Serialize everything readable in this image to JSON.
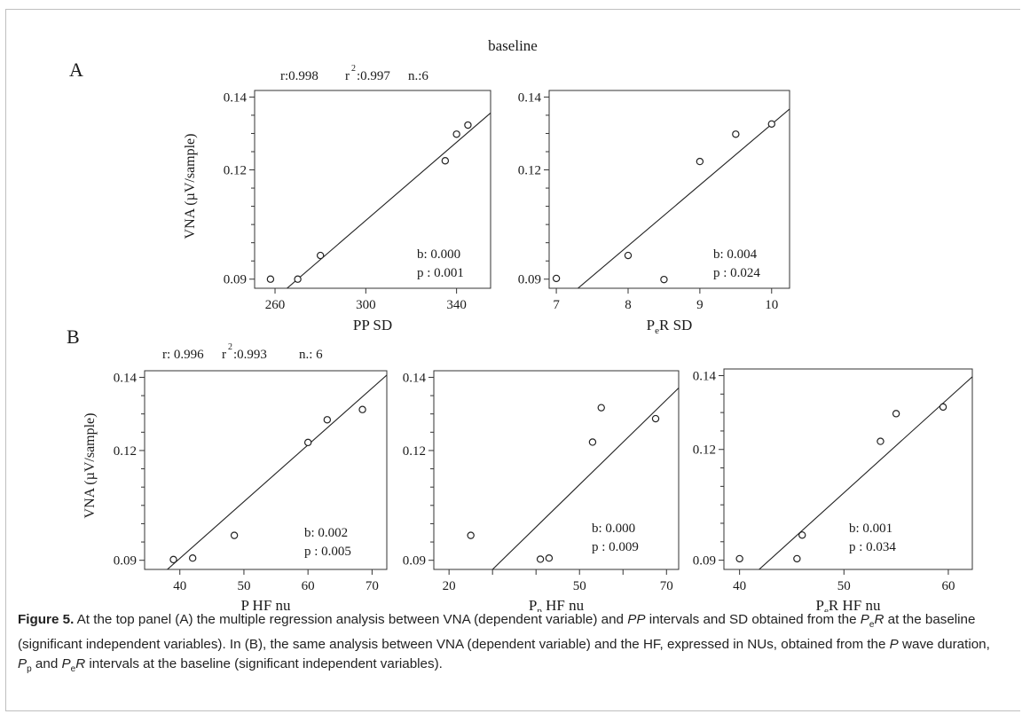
{
  "figure": {
    "overall_title": "baseline",
    "panel_a_label": "A",
    "panel_b_label": "B",
    "panel_a_stats": {
      "r": "r:0.998",
      "r2_label": "r",
      "r2_exp": "2",
      "r2_val": ":0.997",
      "n": "n.:6"
    },
    "panel_b_stats": {
      "r": "r: 0.996",
      "r2_label": "r",
      "r2_exp": "2",
      "r2_val": ":0.993",
      "n": "n.: 6"
    },
    "ylabel": "VNA (µV/sample)"
  },
  "chart_data": [
    {
      "type": "scatter",
      "panel": "A",
      "xlabel": "PP SD",
      "xlim": [
        251,
        355
      ],
      "ylim": [
        0.0875,
        0.1418
      ],
      "xticks": [
        260,
        300,
        340
      ],
      "yticks": [
        0.09,
        0.12,
        0.14
      ],
      "x": [
        258,
        270,
        280,
        335,
        340,
        345
      ],
      "y": [
        0.09,
        0.09,
        0.0965,
        0.1225,
        0.1298,
        0.1323
      ],
      "fit": {
        "x": [
          264,
          357
        ],
        "y": [
          0.0868,
          0.1367
        ]
      },
      "annotations": [
        "b: 0.000",
        "p : 0.001"
      ]
    },
    {
      "type": "scatter",
      "panel": "A",
      "xlabel": "PeR SD",
      "xlabel_main": "P",
      "xlabel_sub": "e",
      "xlabel_rest": "R SD",
      "xlim": [
        6.9,
        10.25
      ],
      "ylim": [
        0.0875,
        0.1418
      ],
      "xticks": [
        7,
        8,
        9,
        10
      ],
      "yticks": [
        0.09,
        0.12,
        0.14
      ],
      "x": [
        7,
        8,
        8.5,
        9,
        9.5,
        10
      ],
      "y": [
        0.0902,
        0.0965,
        0.0899,
        0.1223,
        0.1298,
        0.1326
      ],
      "fit": {
        "x": [
          7.26,
          10.25
        ],
        "y": [
          0.0868,
          0.1367
        ]
      },
      "annotations": [
        "b: 0.004",
        "p : 0.024"
      ]
    },
    {
      "type": "scatter",
      "panel": "B",
      "xlabel": "P HF nu",
      "xlim": [
        34.5,
        72.3
      ],
      "ylim": [
        0.0875,
        0.1418
      ],
      "xticks": [
        40,
        50,
        60,
        70
      ],
      "yticks": [
        0.09,
        0.12,
        0.14
      ],
      "x": [
        39,
        42,
        48.5,
        60,
        63,
        68.5
      ],
      "y": [
        0.0902,
        0.0906,
        0.0968,
        0.1222,
        0.1284,
        0.1312
      ],
      "fit": {
        "x": [
          37.6,
          72.3
        ],
        "y": [
          0.0868,
          0.1406
        ]
      },
      "annotations": [
        "b: 0.002",
        "p : 0.005"
      ]
    },
    {
      "type": "scatter",
      "panel": "B",
      "xlabel": "Pp HF nu",
      "xlabel_main": "P",
      "xlabel_sub": "p",
      "xlabel_rest": " HF nu",
      "xlim": [
        16.5,
        72.8
      ],
      "ylim": [
        0.0875,
        0.1418
      ],
      "xticks": [
        20,
        30,
        40,
        50,
        60,
        70
      ],
      "ytick_labels_shown": [
        "0.09",
        "0.12",
        "0.14"
      ],
      "yticks": [
        0.09,
        0.12,
        0.14
      ],
      "xtick_labels_shown": [
        20,
        50,
        70
      ],
      "x": [
        25,
        41,
        43,
        53,
        55,
        67.5
      ],
      "y": [
        0.0968,
        0.0903,
        0.0906,
        0.1223,
        0.1317,
        0.1287
      ],
      "fit": {
        "x": [
          29.4,
          72.8
        ],
        "y": [
          0.0868,
          0.1371
        ]
      },
      "annotations": [
        "b: 0.000",
        "p : 0.009"
      ]
    },
    {
      "type": "scatter",
      "panel": "B",
      "xlabel": "PeR HF nu",
      "xlabel_main": "P",
      "xlabel_sub": "e",
      "xlabel_rest": "R HF nu",
      "xlim": [
        38.5,
        62.3
      ],
      "ylim": [
        0.0875,
        0.1418
      ],
      "xticks": [
        40,
        50,
        60
      ],
      "yticks": [
        0.09,
        0.12,
        0.14
      ],
      "x": [
        40,
        45.5,
        46,
        53.5,
        55,
        59.5
      ],
      "y": [
        0.0904,
        0.0904,
        0.0968,
        0.1222,
        0.1297,
        0.1315
      ],
      "fit": {
        "x": [
          41.6,
          62.3
        ],
        "y": [
          0.0868,
          0.1397
        ]
      },
      "annotations": [
        "b: 0.001",
        "p : 0.034"
      ]
    }
  ],
  "caption": {
    "lead": "Figure 5.",
    "t1": " At the top panel (A) the multiple regression analysis between VNA (dependent variable) and ",
    "t2": "PP",
    "t3": " intervals and SD obtained from the ",
    "t4": "P",
    "t5": "e",
    "t6": "R",
    "t7": " at the baseline (significant independent variables). In (B), the same analysis between VNA (dependent variable) and the HF, expressed in NUs, obtained from the ",
    "t8": "P",
    "t9": " wave duration, ",
    "t10": "P",
    "t11": "p",
    "t12": " and ",
    "t13": "P",
    "t14": "e",
    "t15": "R",
    "t16": " intervals at the baseline (significant independent variables)."
  }
}
